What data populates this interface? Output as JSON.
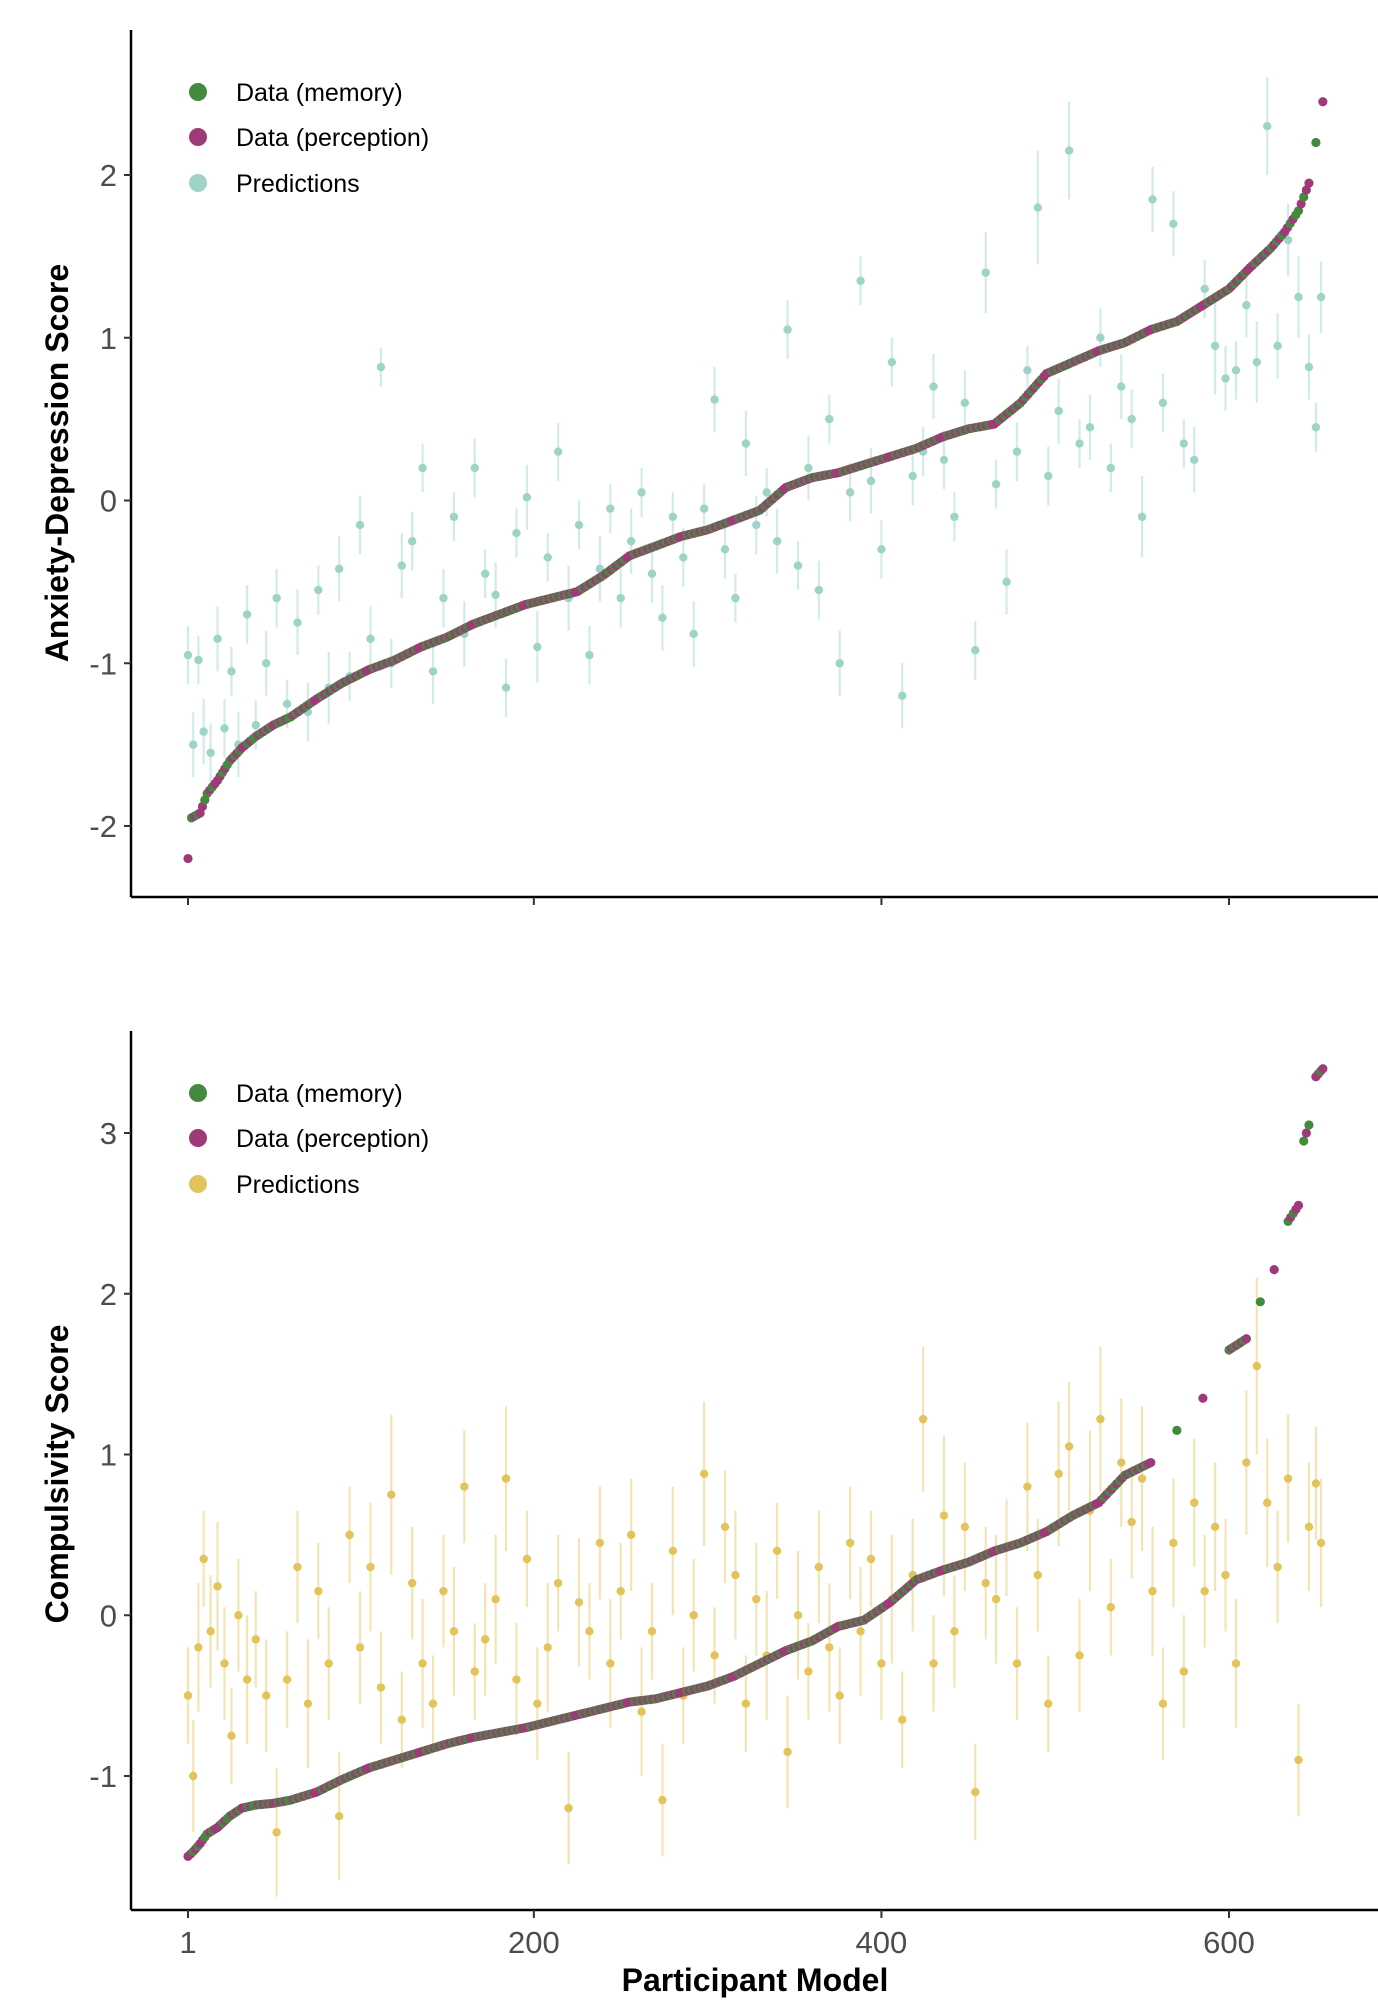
{
  "chart_data": [
    {
      "type": "scatter",
      "panel": "top",
      "ylabel": "Anxiety-Depression Score",
      "xlabel": "",
      "xlim": [
        -15,
        686
      ],
      "ylim": [
        -2.35,
        2.9
      ],
      "xticks": [
        1,
        200,
        400,
        600
      ],
      "xtick_labels_shown": false,
      "yticks": [
        -2,
        -1,
        0,
        1,
        2
      ],
      "ytick_labels": [
        "-2",
        "-1",
        "0",
        "1",
        "2"
      ],
      "grid": false,
      "legend": {
        "position": "top-left",
        "entries": [
          {
            "label": "Data (memory)",
            "color": "#438A3F"
          },
          {
            "label": "Data (perception)",
            "color": "#9E3A78"
          },
          {
            "label": "Predictions",
            "color": "#9ED3C8"
          }
        ]
      },
      "data_curve": {
        "x": [
          1,
          3,
          8,
          12,
          18,
          25,
          32,
          40,
          50,
          60,
          75,
          90,
          105,
          120,
          135,
          150,
          165,
          180,
          195,
          210,
          225,
          240,
          255,
          270,
          285,
          300,
          315,
          330,
          345,
          360,
          375,
          390,
          405,
          420,
          435,
          450,
          465,
          480,
          495,
          510,
          525,
          540,
          555,
          570,
          585,
          600,
          612,
          624,
          632,
          640,
          646,
          650,
          654
        ],
        "y": [
          -2.2,
          -1.95,
          -1.92,
          -1.8,
          -1.72,
          -1.6,
          -1.52,
          -1.45,
          -1.38,
          -1.33,
          -1.22,
          -1.12,
          -1.04,
          -0.98,
          -0.9,
          -0.84,
          -0.76,
          -0.7,
          -0.64,
          -0.6,
          -0.56,
          -0.46,
          -0.34,
          -0.28,
          -0.22,
          -0.18,
          -0.12,
          -0.06,
          0.08,
          0.14,
          0.17,
          0.22,
          0.27,
          0.32,
          0.39,
          0.44,
          0.47,
          0.6,
          0.78,
          0.85,
          0.92,
          0.97,
          1.05,
          1.1,
          1.2,
          1.3,
          1.43,
          1.55,
          1.65,
          1.78,
          1.95,
          2.2,
          2.45
        ],
        "source": [
          "perception",
          "memory",
          "perception",
          "memory",
          "perception",
          "memory",
          "perception",
          "memory",
          "perception",
          "memory",
          "perception",
          "memory",
          "perception",
          "memory",
          "perception",
          "memory",
          "perception",
          "memory",
          "perception",
          "memory",
          "perception",
          "memory",
          "perception",
          "memory",
          "perception",
          "memory",
          "perception",
          "memory",
          "perception",
          "memory",
          "perception",
          "memory",
          "perception",
          "memory",
          "perception",
          "memory",
          "perception",
          "memory",
          "perception",
          "memory",
          "perception",
          "memory",
          "perception",
          "memory",
          "perception",
          "memory",
          "perception",
          "memory",
          "perception",
          "memory",
          "perception",
          "memory",
          "perception"
        ]
      },
      "predictions": {
        "x": [
          1,
          4,
          7,
          10,
          14,
          18,
          22,
          26,
          30,
          35,
          40,
          46,
          52,
          58,
          64,
          70,
          76,
          82,
          88,
          94,
          100,
          106,
          112,
          118,
          124,
          130,
          136,
          142,
          148,
          154,
          160,
          166,
          172,
          178,
          184,
          190,
          196,
          202,
          208,
          214,
          220,
          226,
          232,
          238,
          244,
          250,
          256,
          262,
          268,
          274,
          280,
          286,
          292,
          298,
          304,
          310,
          316,
          322,
          328,
          334,
          340,
          346,
          352,
          358,
          364,
          370,
          376,
          382,
          388,
          394,
          400,
          406,
          412,
          418,
          424,
          430,
          436,
          442,
          448,
          454,
          460,
          466,
          472,
          478,
          484,
          490,
          496,
          502,
          508,
          514,
          520,
          526,
          532,
          538,
          544,
          550,
          556,
          562,
          568,
          574,
          580,
          586,
          592,
          598,
          604,
          610,
          616,
          622,
          628,
          634,
          640,
          646,
          650,
          653
        ],
        "y": [
          -0.95,
          -1.5,
          -0.98,
          -1.42,
          -1.55,
          -0.85,
          -1.4,
          -1.05,
          -1.5,
          -0.7,
          -1.38,
          -1.0,
          -0.6,
          -1.25,
          -0.75,
          -1.3,
          -0.55,
          -1.15,
          -0.42,
          -1.08,
          -0.15,
          -0.85,
          0.82,
          -1.0,
          -0.4,
          -0.25,
          0.2,
          -1.05,
          -0.6,
          -0.1,
          -0.82,
          0.2,
          -0.45,
          -0.58,
          -1.15,
          -0.2,
          0.02,
          -0.9,
          -0.35,
          0.3,
          -0.6,
          -0.15,
          -0.95,
          -0.42,
          -0.05,
          -0.6,
          -0.25,
          0.05,
          -0.45,
          -0.72,
          -0.1,
          -0.35,
          -0.82,
          -0.05,
          0.62,
          -0.3,
          -0.6,
          0.35,
          -0.15,
          0.05,
          -0.25,
          1.05,
          -0.4,
          0.2,
          -0.55,
          0.5,
          -1.0,
          0.05,
          1.35,
          0.12,
          -0.3,
          0.85,
          -1.2,
          0.15,
          0.3,
          0.7,
          0.25,
          -0.1,
          0.6,
          -0.92,
          1.4,
          0.1,
          -0.5,
          0.3,
          0.8,
          1.8,
          0.15,
          0.55,
          2.15,
          0.35,
          0.45,
          1.0,
          0.2,
          0.7,
          0.5,
          -0.1,
          1.85,
          0.6,
          1.7,
          0.35,
          0.25,
          1.3,
          0.95,
          0.75,
          0.8,
          1.2,
          0.85,
          2.3,
          0.95,
          1.6,
          1.25,
          0.82,
          0.45,
          1.25
        ],
        "err": [
          0.18,
          0.2,
          0.15,
          0.2,
          0.18,
          0.2,
          0.18,
          0.15,
          0.2,
          0.18,
          0.15,
          0.2,
          0.18,
          0.15,
          0.2,
          0.18,
          0.15,
          0.22,
          0.2,
          0.15,
          0.18,
          0.2,
          0.12,
          0.15,
          0.2,
          0.18,
          0.15,
          0.2,
          0.18,
          0.15,
          0.2,
          0.18,
          0.15,
          0.2,
          0.18,
          0.15,
          0.2,
          0.22,
          0.15,
          0.18,
          0.2,
          0.15,
          0.18,
          0.2,
          0.15,
          0.18,
          0.2,
          0.15,
          0.18,
          0.2,
          0.15,
          0.18,
          0.2,
          0.15,
          0.2,
          0.18,
          0.15,
          0.2,
          0.18,
          0.15,
          0.2,
          0.18,
          0.15,
          0.2,
          0.18,
          0.15,
          0.2,
          0.18,
          0.15,
          0.2,
          0.18,
          0.15,
          0.2,
          0.18,
          0.15,
          0.2,
          0.18,
          0.15,
          0.2,
          0.18,
          0.25,
          0.15,
          0.2,
          0.18,
          0.15,
          0.35,
          0.18,
          0.2,
          0.3,
          0.15,
          0.2,
          0.18,
          0.15,
          0.2,
          0.18,
          0.25,
          0.2,
          0.18,
          0.2,
          0.15,
          0.2,
          0.18,
          0.3,
          0.2,
          0.18,
          0.2,
          0.25,
          0.3,
          0.2,
          0.22,
          0.25,
          0.2,
          0.15,
          0.22
        ]
      }
    },
    {
      "type": "scatter",
      "panel": "bottom",
      "ylabel": "Compulsivity Score",
      "xlabel": "Participant Model",
      "xlim": [
        -15,
        686
      ],
      "ylim": [
        -1.85,
        3.6
      ],
      "xticks": [
        1,
        200,
        400,
        600
      ],
      "xtick_labels": [
        "1",
        "200",
        "400",
        "600"
      ],
      "yticks": [
        -1,
        0,
        1,
        2,
        3
      ],
      "ytick_labels": [
        "-1",
        "0",
        "1",
        "2",
        "3"
      ],
      "grid": false,
      "legend": {
        "position": "top-left",
        "entries": [
          {
            "label": "Data (memory)",
            "color": "#438A3F"
          },
          {
            "label": "Data (perception)",
            "color": "#9E3A78"
          },
          {
            "label": "Predictions",
            "color": "#E3C45A"
          }
        ]
      },
      "data_curve": {
        "x": [
          1,
          4,
          8,
          12,
          18,
          25,
          32,
          40,
          50,
          60,
          75,
          90,
          105,
          120,
          135,
          150,
          165,
          180,
          195,
          210,
          225,
          240,
          255,
          270,
          285,
          300,
          315,
          330,
          345,
          360,
          375,
          390,
          405,
          420,
          435,
          450,
          465,
          480,
          495,
          510,
          525,
          540,
          555,
          570,
          585,
          600,
          610,
          618,
          626,
          634,
          640,
          643,
          646,
          650,
          654
        ],
        "y": [
          -1.5,
          -1.47,
          -1.42,
          -1.36,
          -1.32,
          -1.25,
          -1.2,
          -1.18,
          -1.17,
          -1.15,
          -1.1,
          -1.02,
          -0.95,
          -0.9,
          -0.85,
          -0.8,
          -0.76,
          -0.73,
          -0.7,
          -0.66,
          -0.62,
          -0.58,
          -0.54,
          -0.52,
          -0.48,
          -0.44,
          -0.38,
          -0.3,
          -0.22,
          -0.16,
          -0.07,
          -0.03,
          0.08,
          0.22,
          0.28,
          0.33,
          0.4,
          0.45,
          0.52,
          0.62,
          0.7,
          0.87,
          0.95,
          1.15,
          1.35,
          1.65,
          1.72,
          1.95,
          2.15,
          2.45,
          2.55,
          2.95,
          3.05,
          3.35,
          3.4
        ],
        "source": [
          "perception",
          "memory",
          "perception",
          "memory",
          "perception",
          "memory",
          "perception",
          "memory",
          "perception",
          "memory",
          "perception",
          "memory",
          "perception",
          "memory",
          "perception",
          "memory",
          "perception",
          "memory",
          "perception",
          "memory",
          "perception",
          "memory",
          "perception",
          "memory",
          "perception",
          "memory",
          "perception",
          "memory",
          "perception",
          "memory",
          "perception",
          "memory",
          "perception",
          "memory",
          "perception",
          "memory",
          "perception",
          "memory",
          "perception",
          "memory",
          "perception",
          "memory",
          "perception",
          "memory",
          "perception",
          "memory",
          "perception",
          "memory",
          "perception",
          "memory",
          "perception",
          "memory",
          "memory",
          "perception",
          "perception"
        ]
      },
      "predictions": {
        "x": [
          1,
          4,
          7,
          10,
          14,
          18,
          22,
          26,
          30,
          35,
          40,
          46,
          52,
          58,
          64,
          70,
          76,
          82,
          88,
          94,
          100,
          106,
          112,
          118,
          124,
          130,
          136,
          142,
          148,
          154,
          160,
          166,
          172,
          178,
          184,
          190,
          196,
          202,
          208,
          214,
          220,
          226,
          232,
          238,
          244,
          250,
          256,
          262,
          268,
          274,
          280,
          286,
          292,
          298,
          304,
          310,
          316,
          322,
          328,
          334,
          340,
          346,
          352,
          358,
          364,
          370,
          376,
          382,
          388,
          394,
          400,
          406,
          412,
          418,
          424,
          430,
          436,
          442,
          448,
          454,
          460,
          466,
          472,
          478,
          484,
          490,
          496,
          502,
          508,
          514,
          520,
          526,
          532,
          538,
          544,
          550,
          556,
          562,
          568,
          574,
          580,
          586,
          592,
          598,
          604,
          610,
          616,
          622,
          628,
          634,
          640,
          646,
          650,
          653
        ],
        "y": [
          -0.5,
          -1.0,
          -0.2,
          0.35,
          -0.1,
          0.18,
          -0.3,
          -0.75,
          0.0,
          -0.4,
          -0.15,
          -0.5,
          -1.35,
          -0.4,
          0.3,
          -0.55,
          0.15,
          -0.3,
          -1.25,
          0.5,
          -0.2,
          0.3,
          -0.45,
          0.75,
          -0.65,
          0.2,
          -0.3,
          -0.55,
          0.15,
          -0.1,
          0.8,
          -0.35,
          -0.15,
          0.1,
          0.85,
          -0.4,
          0.35,
          -0.55,
          -0.2,
          0.2,
          -1.2,
          0.08,
          -0.1,
          0.45,
          -0.3,
          0.15,
          0.5,
          -0.6,
          -0.1,
          -1.15,
          0.4,
          -0.5,
          0.0,
          0.88,
          -0.25,
          0.55,
          0.25,
          -0.55,
          0.1,
          -0.25,
          0.4,
          -0.85,
          0.0,
          -0.35,
          0.3,
          -0.2,
          -0.5,
          0.45,
          -0.1,
          0.35,
          -0.3,
          0.1,
          -0.65,
          0.25,
          1.22,
          -0.3,
          0.62,
          -0.1,
          0.55,
          -1.1,
          0.2,
          0.1,
          0.42,
          -0.3,
          0.8,
          0.25,
          -0.55,
          0.88,
          1.05,
          -0.25,
          0.65,
          1.22,
          0.05,
          0.95,
          0.58,
          0.85,
          0.15,
          -0.55,
          0.45,
          -0.35,
          0.7,
          0.15,
          0.55,
          0.25,
          -0.3,
          0.95,
          1.55,
          0.7,
          0.3,
          0.85,
          -0.9,
          0.55,
          0.82,
          0.45
        ],
        "err": [
          0.3,
          0.35,
          0.4,
          0.3,
          0.35,
          0.4,
          0.35,
          0.3,
          0.35,
          0.4,
          0.3,
          0.35,
          0.4,
          0.3,
          0.35,
          0.4,
          0.3,
          0.35,
          0.4,
          0.3,
          0.35,
          0.4,
          0.35,
          0.5,
          0.3,
          0.35,
          0.4,
          0.3,
          0.35,
          0.4,
          0.35,
          0.3,
          0.35,
          0.4,
          0.45,
          0.35,
          0.3,
          0.35,
          0.4,
          0.3,
          0.35,
          0.4,
          0.3,
          0.35,
          0.4,
          0.3,
          0.35,
          0.4,
          0.3,
          0.35,
          0.4,
          0.3,
          0.35,
          0.45,
          0.3,
          0.35,
          0.4,
          0.3,
          0.35,
          0.4,
          0.3,
          0.35,
          0.4,
          0.3,
          0.35,
          0.4,
          0.3,
          0.35,
          0.4,
          0.3,
          0.35,
          0.4,
          0.3,
          0.35,
          0.45,
          0.3,
          0.5,
          0.35,
          0.4,
          0.3,
          0.35,
          0.4,
          0.3,
          0.35,
          0.4,
          0.35,
          0.3,
          0.45,
          0.4,
          0.35,
          0.5,
          0.45,
          0.3,
          0.4,
          0.35,
          0.45,
          0.4,
          0.35,
          0.4,
          0.35,
          0.4,
          0.35,
          0.4,
          0.35,
          0.4,
          0.45,
          0.55,
          0.4,
          0.35,
          0.4,
          0.35,
          0.4,
          0.35,
          0.4
        ]
      }
    }
  ]
}
